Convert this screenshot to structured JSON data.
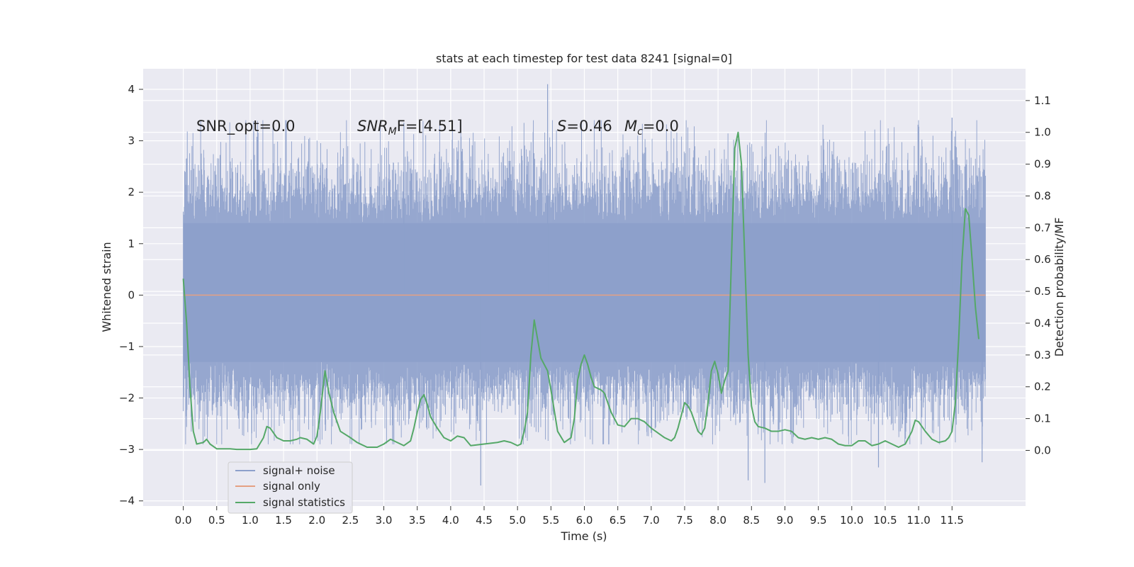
{
  "chart_data": {
    "type": "line",
    "title": "stats at each timestep for test data 8241 [signal=0]",
    "xlabel": "Time (s)",
    "ylabel": "Whitened strain",
    "y2label": "Detection probability/MF",
    "xlim": [
      -0.6,
      12.6
    ],
    "ylim": [
      -4.1,
      4.4
    ],
    "y2lim": [
      -0.175,
      1.2
    ],
    "x_ticks": [
      "0.0",
      "0.5",
      "1.0",
      "1.5",
      "2.0",
      "2.5",
      "3.0",
      "3.5",
      "4.0",
      "4.5",
      "5.0",
      "5.5",
      "6.0",
      "6.5",
      "7.0",
      "7.5",
      "8.0",
      "8.5",
      "9.0",
      "9.5",
      "10.0",
      "10.5",
      "11.0",
      "11.5"
    ],
    "y_ticks": [
      "4",
      "3",
      "2",
      "1",
      "0",
      "−1",
      "−2",
      "−3",
      "−4"
    ],
    "y2_ticks": [
      "1.1",
      "1.0",
      "0.9",
      "0.8",
      "0.7",
      "0.6",
      "0.5",
      "0.4",
      "0.3",
      "0.2",
      "0.1",
      "0.0"
    ],
    "grid": true,
    "legend_position": "bottom-left",
    "annotations": {
      "snr_opt": "SNR_opt=0.0",
      "snr_mf_main": "SNR",
      "snr_mf_sub": "M",
      "snr_mf_rest": "F=[4.51]",
      "s_sym": "S",
      "s_val": "=0.46",
      "mc_sym": "M",
      "mc_sub": "c",
      "mc_val": "=0.0"
    },
    "series": [
      {
        "name": "signal+ noise",
        "color": "#8da0cb",
        "axis": "left",
        "x_range": [
          0.0,
          12.0
        ],
        "core_band": [
          -1.3,
          1.4
        ],
        "envelope": [
          -2.9,
          3.4
        ],
        "max": 4.1,
        "min": -3.7
      },
      {
        "name": "signal only",
        "color": "#e5a083",
        "axis": "left",
        "x": [
          0.0,
          12.0
        ],
        "y": [
          0.0,
          0.0
        ]
      },
      {
        "name": "signal statistics",
        "color": "#55a868",
        "axis": "right",
        "points": [
          [
            0.0,
            0.54
          ],
          [
            0.05,
            0.4
          ],
          [
            0.1,
            0.2
          ],
          [
            0.15,
            0.06
          ],
          [
            0.2,
            0.02
          ],
          [
            0.3,
            0.025
          ],
          [
            0.35,
            0.035
          ],
          [
            0.4,
            0.02
          ],
          [
            0.5,
            0.005
          ],
          [
            0.7,
            0.005
          ],
          [
            0.8,
            0.003
          ],
          [
            1.0,
            0.003
          ],
          [
            1.1,
            0.005
          ],
          [
            1.2,
            0.04
          ],
          [
            1.25,
            0.075
          ],
          [
            1.3,
            0.07
          ],
          [
            1.4,
            0.04
          ],
          [
            1.5,
            0.03
          ],
          [
            1.6,
            0.03
          ],
          [
            1.7,
            0.035
          ],
          [
            1.75,
            0.04
          ],
          [
            1.85,
            0.035
          ],
          [
            1.95,
            0.02
          ],
          [
            2.0,
            0.045
          ],
          [
            2.05,
            0.12
          ],
          [
            2.12,
            0.25
          ],
          [
            2.18,
            0.18
          ],
          [
            2.25,
            0.12
          ],
          [
            2.35,
            0.06
          ],
          [
            2.5,
            0.04
          ],
          [
            2.6,
            0.025
          ],
          [
            2.75,
            0.01
          ],
          [
            2.9,
            0.01
          ],
          [
            3.0,
            0.02
          ],
          [
            3.1,
            0.035
          ],
          [
            3.2,
            0.025
          ],
          [
            3.3,
            0.015
          ],
          [
            3.4,
            0.03
          ],
          [
            3.45,
            0.07
          ],
          [
            3.5,
            0.12
          ],
          [
            3.55,
            0.16
          ],
          [
            3.6,
            0.175
          ],
          [
            3.65,
            0.145
          ],
          [
            3.7,
            0.105
          ],
          [
            3.8,
            0.07
          ],
          [
            3.9,
            0.04
          ],
          [
            4.0,
            0.03
          ],
          [
            4.1,
            0.045
          ],
          [
            4.2,
            0.04
          ],
          [
            4.3,
            0.015
          ],
          [
            4.5,
            0.02
          ],
          [
            4.7,
            0.025
          ],
          [
            4.8,
            0.03
          ],
          [
            4.9,
            0.025
          ],
          [
            5.0,
            0.015
          ],
          [
            5.05,
            0.02
          ],
          [
            5.1,
            0.06
          ],
          [
            5.15,
            0.12
          ],
          [
            5.2,
            0.3
          ],
          [
            5.25,
            0.41
          ],
          [
            5.3,
            0.35
          ],
          [
            5.35,
            0.29
          ],
          [
            5.45,
            0.25
          ],
          [
            5.5,
            0.19
          ],
          [
            5.6,
            0.06
          ],
          [
            5.7,
            0.025
          ],
          [
            5.8,
            0.04
          ],
          [
            5.85,
            0.1
          ],
          [
            5.9,
            0.22
          ],
          [
            5.95,
            0.27
          ],
          [
            6.0,
            0.3
          ],
          [
            6.05,
            0.27
          ],
          [
            6.1,
            0.23
          ],
          [
            6.15,
            0.2
          ],
          [
            6.25,
            0.19
          ],
          [
            6.3,
            0.18
          ],
          [
            6.4,
            0.12
          ],
          [
            6.5,
            0.08
          ],
          [
            6.6,
            0.075
          ],
          [
            6.7,
            0.1
          ],
          [
            6.8,
            0.1
          ],
          [
            6.9,
            0.09
          ],
          [
            7.0,
            0.07
          ],
          [
            7.1,
            0.055
          ],
          [
            7.2,
            0.04
          ],
          [
            7.3,
            0.03
          ],
          [
            7.35,
            0.04
          ],
          [
            7.4,
            0.07
          ],
          [
            7.45,
            0.11
          ],
          [
            7.5,
            0.15
          ],
          [
            7.55,
            0.14
          ],
          [
            7.6,
            0.12
          ],
          [
            7.65,
            0.09
          ],
          [
            7.7,
            0.06
          ],
          [
            7.75,
            0.05
          ],
          [
            7.8,
            0.07
          ],
          [
            7.85,
            0.15
          ],
          [
            7.9,
            0.25
          ],
          [
            7.95,
            0.28
          ],
          [
            8.0,
            0.24
          ],
          [
            8.05,
            0.18
          ],
          [
            8.1,
            0.22
          ],
          [
            8.15,
            0.25
          ],
          [
            8.2,
            0.6
          ],
          [
            8.25,
            0.95
          ],
          [
            8.3,
            1.0
          ],
          [
            8.35,
            0.9
          ],
          [
            8.4,
            0.6
          ],
          [
            8.45,
            0.3
          ],
          [
            8.5,
            0.14
          ],
          [
            8.55,
            0.09
          ],
          [
            8.6,
            0.075
          ],
          [
            8.7,
            0.07
          ],
          [
            8.8,
            0.06
          ],
          [
            8.9,
            0.06
          ],
          [
            9.0,
            0.065
          ],
          [
            9.1,
            0.06
          ],
          [
            9.2,
            0.04
          ],
          [
            9.3,
            0.035
          ],
          [
            9.4,
            0.04
          ],
          [
            9.5,
            0.035
          ],
          [
            9.6,
            0.04
          ],
          [
            9.7,
            0.035
          ],
          [
            9.8,
            0.02
          ],
          [
            9.9,
            0.015
          ],
          [
            10.0,
            0.015
          ],
          [
            10.1,
            0.03
          ],
          [
            10.2,
            0.03
          ],
          [
            10.3,
            0.015
          ],
          [
            10.4,
            0.02
          ],
          [
            10.5,
            0.03
          ],
          [
            10.6,
            0.02
          ],
          [
            10.7,
            0.01
          ],
          [
            10.8,
            0.02
          ],
          [
            10.9,
            0.06
          ],
          [
            10.95,
            0.095
          ],
          [
            11.0,
            0.09
          ],
          [
            11.1,
            0.06
          ],
          [
            11.2,
            0.035
          ],
          [
            11.3,
            0.025
          ],
          [
            11.4,
            0.03
          ],
          [
            11.45,
            0.04
          ],
          [
            11.5,
            0.06
          ],
          [
            11.55,
            0.15
          ],
          [
            11.6,
            0.35
          ],
          [
            11.65,
            0.6
          ],
          [
            11.7,
            0.76
          ],
          [
            11.75,
            0.74
          ],
          [
            11.8,
            0.6
          ],
          [
            11.85,
            0.45
          ],
          [
            11.9,
            0.35
          ]
        ]
      }
    ]
  }
}
